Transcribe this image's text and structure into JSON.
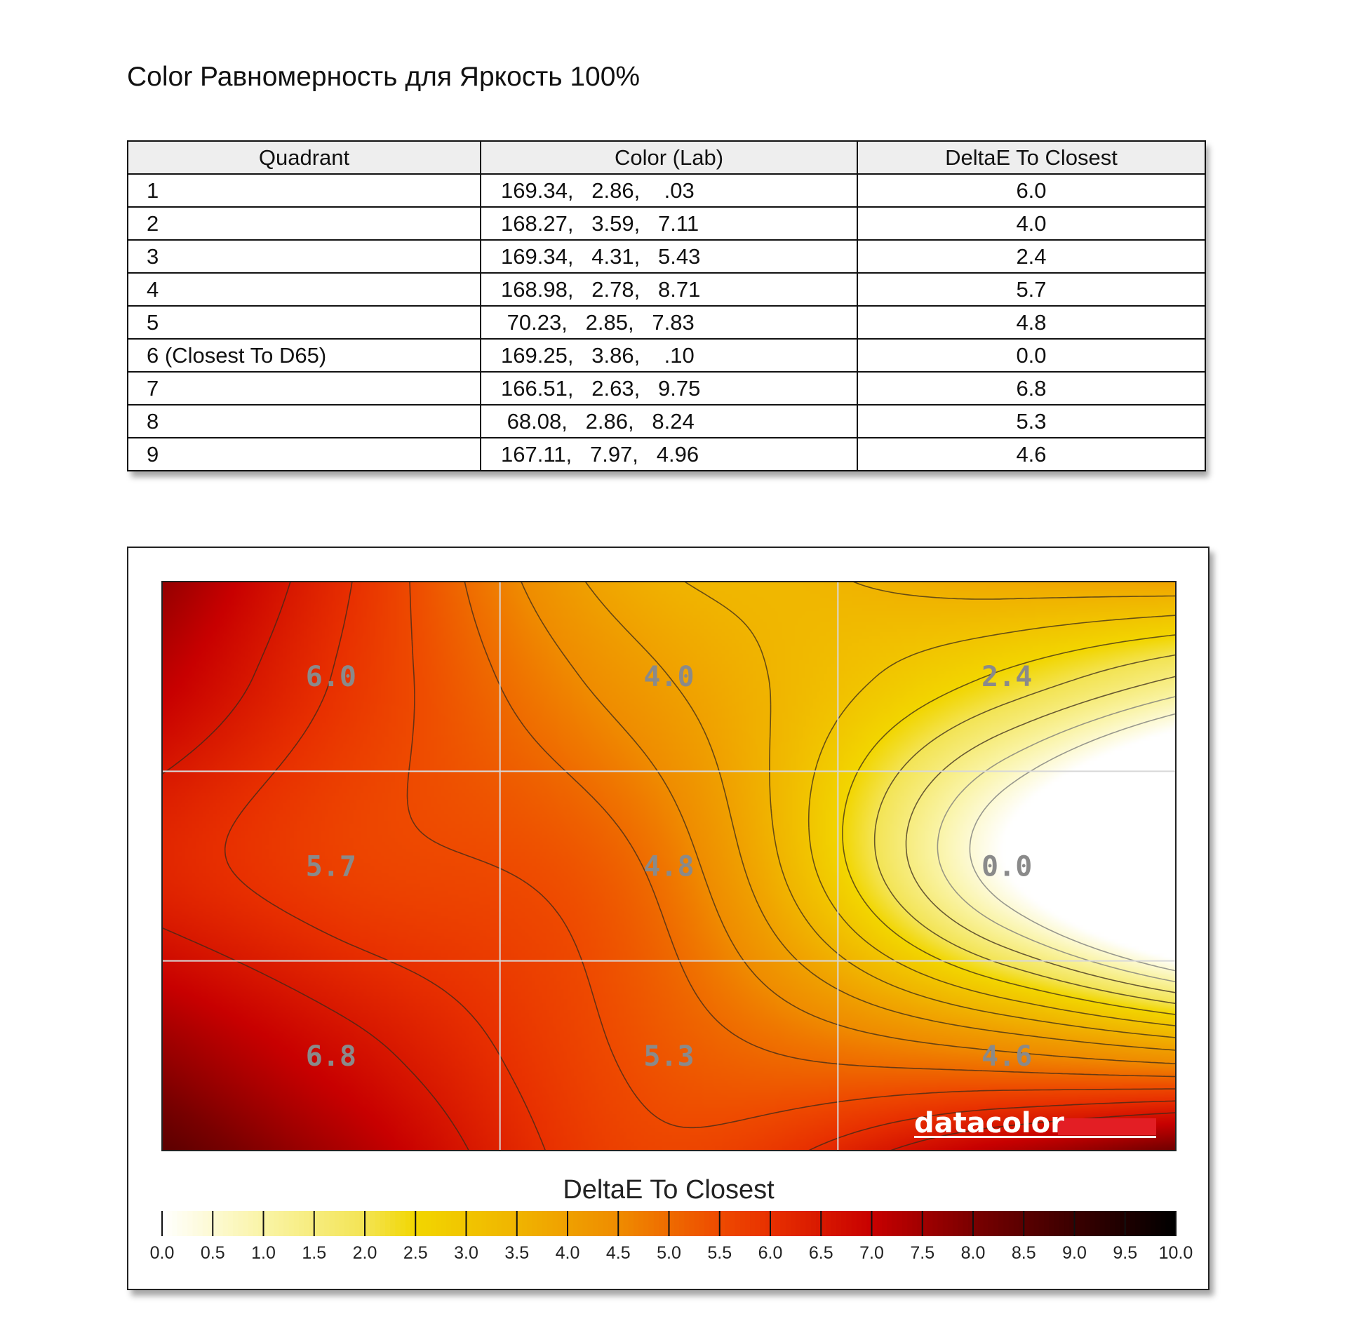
{
  "title": "Color Равномерность для Яркость 100%",
  "table": {
    "headers": [
      "Quadrant",
      "Color (Lab)",
      "DeltaE To Closest"
    ],
    "rows": [
      {
        "quadrant": "1",
        "lab": "169.34,   2.86,    .03",
        "delta": "6.0"
      },
      {
        "quadrant": "2",
        "lab": "168.27,   3.59,   7.11",
        "delta": "4.0"
      },
      {
        "quadrant": "3",
        "lab": "169.34,   4.31,   5.43",
        "delta": "2.4"
      },
      {
        "quadrant": "4",
        "lab": "168.98,   2.78,   8.71",
        "delta": "5.7"
      },
      {
        "quadrant": "5",
        "lab": " 70.23,   2.85,   7.83",
        "delta": "4.8"
      },
      {
        "quadrant": "6 (Closest To D65)",
        "lab": "169.25,   3.86,    .10",
        "delta": "0.0"
      },
      {
        "quadrant": "7",
        "lab": "166.51,   2.63,   9.75",
        "delta": "6.8"
      },
      {
        "quadrant": "8",
        "lab": " 68.08,   2.86,   8.24",
        "delta": "5.3"
      },
      {
        "quadrant": "9",
        "lab": "167.11,   7.97,   4.96",
        "delta": "4.6"
      }
    ]
  },
  "chart_data": {
    "type": "heatmap",
    "rows": 3,
    "cols": 3,
    "cell_labels": [
      [
        "6.0",
        "4.0",
        "2.4"
      ],
      [
        "5.7",
        "4.8",
        "0.0"
      ],
      [
        "6.8",
        "5.3",
        "4.6"
      ]
    ],
    "values": [
      [
        6.0,
        4.0,
        2.4
      ],
      [
        5.7,
        4.8,
        0.0
      ],
      [
        6.8,
        5.3,
        4.6
      ]
    ],
    "legend_title": "DeltaE To Closest",
    "legend_range": [
      0,
      10
    ],
    "legend_ticks": [
      "0.0",
      "0.5",
      "1.0",
      "1.5",
      "2.0",
      "2.5",
      "3.0",
      "3.5",
      "4.0",
      "4.5",
      "5.0",
      "5.5",
      "6.0",
      "6.5",
      "7.0",
      "7.5",
      "8.0",
      "8.5",
      "9.0",
      "9.5",
      "10.0"
    ],
    "colormap": [
      [
        0.0,
        "#ffffff"
      ],
      [
        1.0,
        "#faf4a6"
      ],
      [
        2.0,
        "#f3e454"
      ],
      [
        2.5,
        "#f2d600"
      ],
      [
        3.5,
        "#f0b400"
      ],
      [
        4.5,
        "#ef8c00"
      ],
      [
        5.5,
        "#ee4a00"
      ],
      [
        6.0,
        "#e83000"
      ],
      [
        7.0,
        "#c80000"
      ],
      [
        8.0,
        "#7a0000"
      ],
      [
        9.0,
        "#3a0000"
      ],
      [
        10.0,
        "#000000"
      ]
    ],
    "logo": "datacolor",
    "logo_accent_color": "#e31e24"
  }
}
